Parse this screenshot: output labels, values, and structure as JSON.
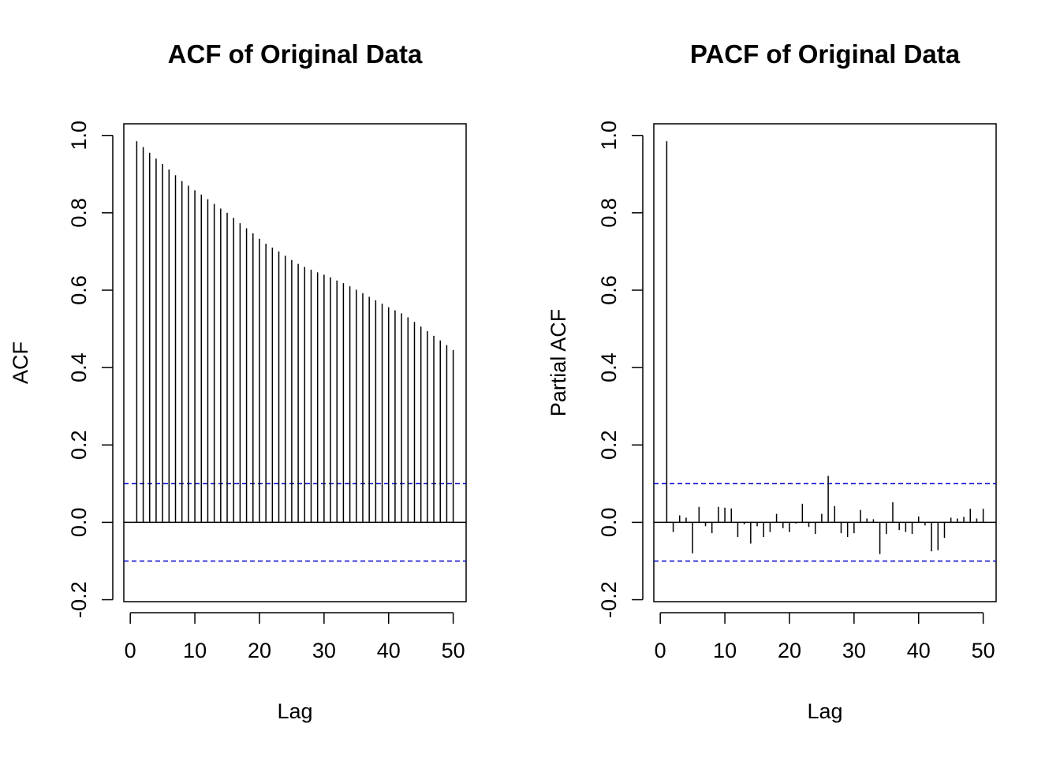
{
  "chart_data": [
    {
      "type": "stem",
      "title": "ACF of Original Data",
      "x_label": "Lag",
      "y_label": "ACF",
      "x": [
        1,
        2,
        3,
        4,
        5,
        6,
        7,
        8,
        9,
        10,
        11,
        12,
        13,
        14,
        15,
        16,
        17,
        18,
        19,
        20,
        21,
        22,
        23,
        24,
        25,
        26,
        27,
        28,
        29,
        30,
        31,
        32,
        33,
        34,
        35,
        36,
        37,
        38,
        39,
        40,
        41,
        42,
        43,
        44,
        45,
        46,
        47,
        48,
        49,
        50
      ],
      "values": [
        0.985,
        0.97,
        0.955,
        0.94,
        0.926,
        0.912,
        0.897,
        0.882,
        0.87,
        0.858,
        0.847,
        0.835,
        0.823,
        0.811,
        0.8,
        0.787,
        0.773,
        0.76,
        0.747,
        0.733,
        0.72,
        0.71,
        0.7,
        0.689,
        0.678,
        0.668,
        0.66,
        0.653,
        0.646,
        0.64,
        0.633,
        0.625,
        0.618,
        0.61,
        0.601,
        0.592,
        0.583,
        0.574,
        0.565,
        0.556,
        0.548,
        0.54,
        0.53,
        0.518,
        0.506,
        0.494,
        0.482,
        0.47,
        0.458,
        0.445
      ],
      "color": "#000000",
      "ci_lines": [
        0.1,
        -0.1
      ],
      "ci_color": "#0000cc",
      "xlim": [
        -1,
        52
      ],
      "xticks": [
        0,
        10,
        20,
        30,
        40,
        50
      ],
      "ylim": [
        -0.205,
        1.03
      ],
      "yticks": [
        -0.2,
        {
          "value": 0,
          "label": "0.0"
        },
        0.2,
        0.4,
        0.6,
        0.8,
        {
          "value": 1,
          "label": "1.0"
        }
      ]
    },
    {
      "type": "stem",
      "title": "PACF of Original Data",
      "x_label": "Lag",
      "y_label": "Partial ACF",
      "x": [
        1,
        2,
        3,
        4,
        5,
        6,
        7,
        8,
        9,
        10,
        11,
        12,
        13,
        14,
        15,
        16,
        17,
        18,
        19,
        20,
        21,
        22,
        23,
        24,
        25,
        26,
        27,
        28,
        29,
        30,
        31,
        32,
        33,
        34,
        35,
        36,
        37,
        38,
        39,
        40,
        41,
        42,
        43,
        44,
        45,
        46,
        47,
        48,
        49,
        50
      ],
      "values": [
        0.985,
        -0.025,
        0.018,
        0.012,
        -0.08,
        0.04,
        -0.01,
        -0.028,
        0.04,
        0.038,
        0.036,
        -0.038,
        -0.005,
        -0.055,
        -0.01,
        -0.038,
        -0.025,
        0.022,
        -0.015,
        -0.025,
        -0.003,
        0.048,
        -0.012,
        -0.03,
        0.022,
        0.12,
        0.042,
        -0.028,
        -0.038,
        -0.028,
        0.032,
        0.01,
        0.008,
        -0.082,
        -0.03,
        0.052,
        -0.02,
        -0.025,
        -0.03,
        0.015,
        -0.008,
        -0.075,
        -0.072,
        -0.04,
        0.012,
        0.01,
        0.014,
        0.035,
        0.01,
        0.035
      ],
      "color": "#000000",
      "ci_lines": [
        0.1,
        -0.1
      ],
      "ci_color": "#0000cc",
      "xlim": [
        -1,
        52
      ],
      "xticks": [
        0,
        10,
        20,
        30,
        40,
        50
      ],
      "ylim": [
        -0.205,
        1.03
      ],
      "yticks": [
        -0.2,
        {
          "value": 0,
          "label": "0.0"
        },
        0.2,
        0.4,
        0.6,
        0.8,
        {
          "value": 1,
          "label": "1.0"
        }
      ]
    }
  ]
}
